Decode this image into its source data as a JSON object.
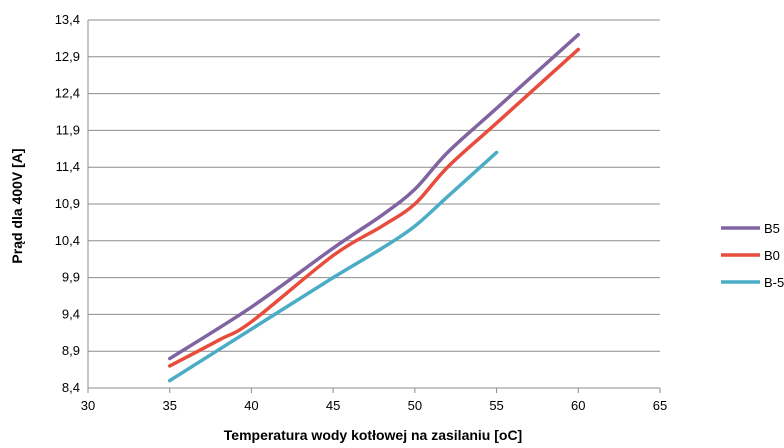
{
  "chart_data": {
    "type": "line",
    "title": "",
    "xlabel": "Temperatura wody kotłowej na zasilaniu [oC]",
    "ylabel": "Prąd dla 400V [A]",
    "xlim": [
      30,
      65
    ],
    "ylim": [
      8.4,
      13.4
    ],
    "x_ticks": [
      "30",
      "35",
      "40",
      "45",
      "50",
      "55",
      "60",
      "65"
    ],
    "y_ticks": [
      "8,4",
      "8,9",
      "9,4",
      "9,9",
      "10,4",
      "10,9",
      "11,4",
      "11,9",
      "12,4",
      "12,9",
      "13,4"
    ],
    "grid": "horizontal",
    "legend_position": "right",
    "series": [
      {
        "name": "B5",
        "color": "#8064a2",
        "points": [
          [
            35,
            8.8
          ],
          [
            40,
            9.5
          ],
          [
            45,
            10.3
          ],
          [
            48,
            10.75
          ],
          [
            50,
            11.1
          ],
          [
            52,
            11.6
          ],
          [
            55,
            12.2
          ],
          [
            60,
            13.2
          ]
        ]
      },
      {
        "name": "B0",
        "color": "#e84c3d",
        "points": [
          [
            35,
            8.7
          ],
          [
            38,
            9.05
          ],
          [
            40,
            9.3
          ],
          [
            45,
            10.2
          ],
          [
            48,
            10.6
          ],
          [
            50,
            10.9
          ],
          [
            52,
            11.4
          ],
          [
            55,
            12.0
          ],
          [
            60,
            13.0
          ]
        ]
      },
      {
        "name": "B-5",
        "color": "#4bacc6",
        "points": [
          [
            35,
            8.5
          ],
          [
            40,
            9.2
          ],
          [
            45,
            9.9
          ],
          [
            48,
            10.3
          ],
          [
            50,
            10.6
          ],
          [
            52,
            11.0
          ],
          [
            55,
            11.6
          ]
        ]
      }
    ]
  }
}
